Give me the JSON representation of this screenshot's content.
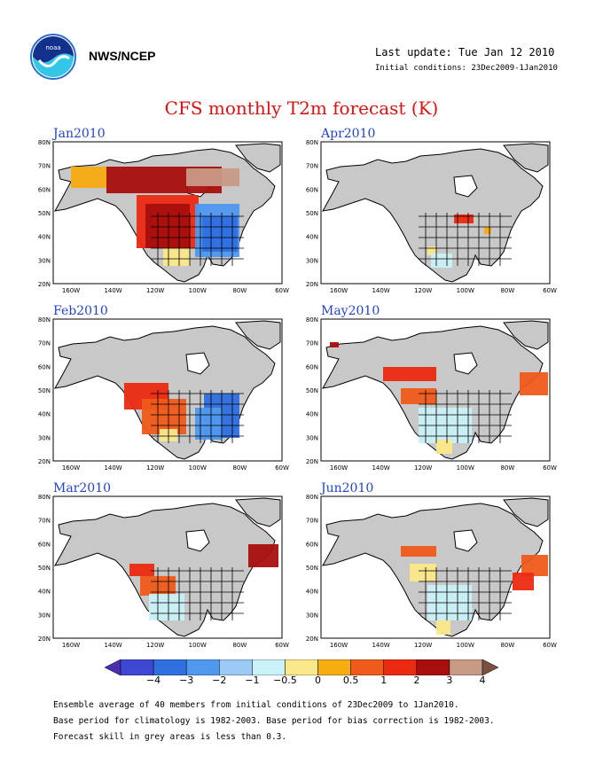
{
  "header": {
    "org": "NWS/NCEP",
    "last_update": "Last update: Tue Jan 12 2010",
    "initial_conditions": "Initial conditions: 23Dec2009-1Jan2010"
  },
  "title": "CFS monthly T2m forecast (K)",
  "panels": [
    {
      "label": "Jan2010"
    },
    {
      "label": "Apr2010"
    },
    {
      "label": "Feb2010"
    },
    {
      "label": "May2010"
    },
    {
      "label": "Mar2010"
    },
    {
      "label": "Jun2010"
    }
  ],
  "axes": {
    "lat_labels": [
      "80N",
      "70N",
      "60N",
      "50N",
      "40N",
      "30N",
      "20N"
    ],
    "lon_labels": [
      "160W",
      "140W",
      "120W",
      "100W",
      "80W",
      "60W"
    ]
  },
  "colorbar": {
    "labels": [
      "−4",
      "−3",
      "−2",
      "−1",
      "−0.5",
      "0",
      "0.5",
      "1",
      "2",
      "3",
      "4"
    ],
    "colors": [
      "#4c2fb0",
      "#3e48d2",
      "#2f6fe0",
      "#4f98ee",
      "#9ccaf6",
      "#c9f1f8",
      "#fbe88a",
      "#f7ac10",
      "#f05a1a",
      "#ec2a12",
      "#a80e0e",
      "#c89a86",
      "#7a5040"
    ]
  },
  "footer": [
    "Ensemble average of 40 members from initial conditions of 23Dec2009 to 1Jan2010.",
    "Base period for climatology is 1982-2003. Base period for bias correction is 1982-2003.",
    "Forecast skill in grey areas is less than 0.3."
  ],
  "colors": {
    "grey": "#c8c8c8",
    "title": "#dd1111",
    "panel_label": "#2244cc"
  }
}
